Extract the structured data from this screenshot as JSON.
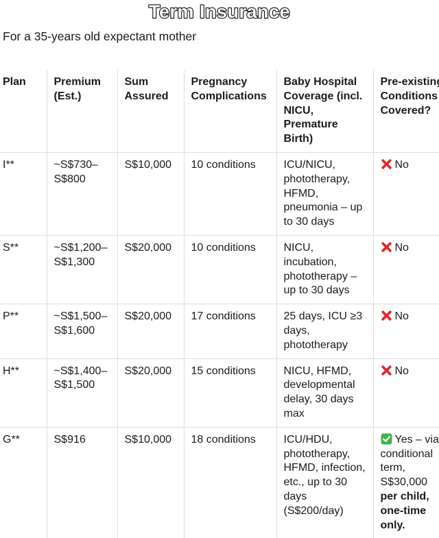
{
  "header": {
    "title": "Term Insurance",
    "subtitle": "For a 35-years old expectant mother"
  },
  "table": {
    "columns": [
      "Plan",
      "Premium (Est.)",
      "Sum Assured",
      "Pregnancy Complications",
      "Baby Hospital Coverage (incl. NICU, Premature Birth)",
      "Pre-existing Conditions Covered?"
    ],
    "rows": [
      [
        "I**",
        "~S$730–S$800",
        "S$10,000",
        "10 conditions",
        "ICU/NICU, phototherapy, HFMD, pneumonia – up to 30 days",
        "No"
      ],
      [
        "S**",
        "~S$1,200–S$1,300",
        "S$20,000",
        "10 conditions",
        "NICU, incubation, phototherapy – up to 30 days",
        "No"
      ],
      [
        "P**",
        "~S$1,500–S$1,600",
        "S$20,000",
        "17 conditions",
        "25 days, ICU ≥3 days, phototherapy",
        "No"
      ],
      [
        "H**",
        "~S$1,400–S$1,500",
        "S$20,000",
        "15 conditions",
        "NICU, HFMD, developmental delay, 30 days max",
        "No"
      ],
      [
        "G**",
        "S$916",
        "S$10,000",
        "18 conditions",
        "ICU/HDU, phototherapy, HFMD, infection, etc., up to 30 days (S$200/day)",
        {
          "text": "Yes – via conditional term, S$30,000",
          "bold": "per child, one-time only."
        }
      ]
    ]
  }
}
